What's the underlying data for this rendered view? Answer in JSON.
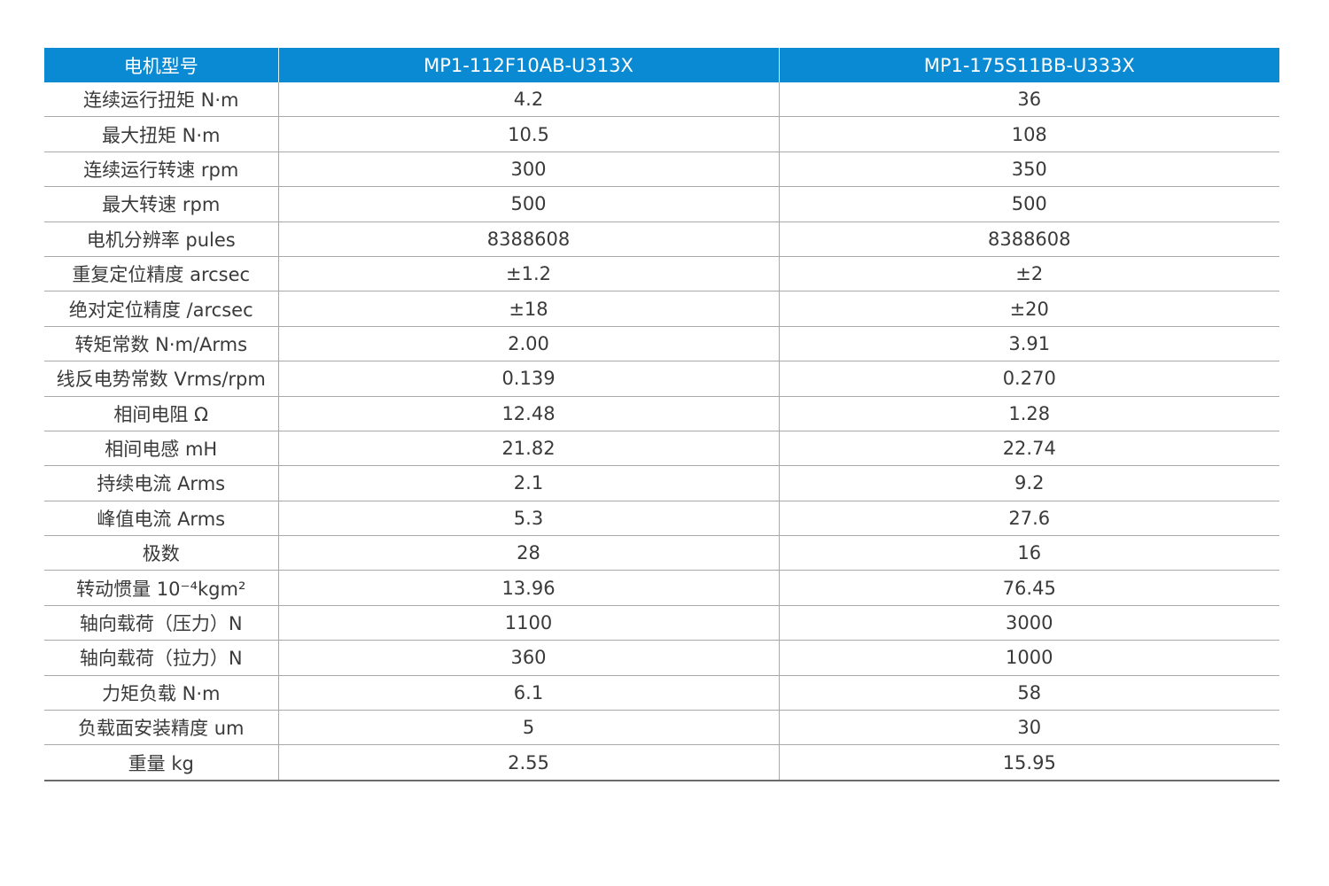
{
  "table": {
    "header": [
      "电机型号",
      "MP1-112F10AB-U313X",
      "MP1-175S11BB-U333X"
    ],
    "rows": [
      [
        "连续运行扭矩 N·m",
        "4.2",
        "36"
      ],
      [
        "最大扭矩 N·m",
        "10.5",
        "108"
      ],
      [
        "连续运行转速 rpm",
        "300",
        "350"
      ],
      [
        "最大转速 rpm",
        "500",
        "500"
      ],
      [
        "电机分辨率 pules",
        "8388608",
        "8388608"
      ],
      [
        "重复定位精度 arcsec",
        "±1.2",
        "±2"
      ],
      [
        "绝对定位精度 /arcsec",
        "±18",
        "±20"
      ],
      [
        "转矩常数 N·m/Arms",
        "2.00",
        "3.91"
      ],
      [
        "线反电势常数 Vrms/rpm",
        "0.139",
        "0.270"
      ],
      [
        "相间电阻 Ω",
        "12.48",
        "1.28"
      ],
      [
        "相间电感 mH",
        "21.82",
        "22.74"
      ],
      [
        "持续电流 Arms",
        "2.1",
        "9.2"
      ],
      [
        "峰值电流 Arms",
        "5.3",
        "27.6"
      ],
      [
        "极数",
        "28",
        "16"
      ],
      [
        "转动惯量 10⁻⁴kgm²",
        "13.96",
        "76.45"
      ],
      [
        "轴向载荷（压力）N",
        "1100",
        "3000"
      ],
      [
        "轴向载荷（拉力）N",
        "360",
        "1000"
      ],
      [
        "力矩负载 N·m",
        "6.1",
        "58"
      ],
      [
        "负载面安装精度 um",
        "5",
        "30"
      ],
      [
        "重量 kg",
        "2.55",
        "15.95"
      ]
    ]
  }
}
